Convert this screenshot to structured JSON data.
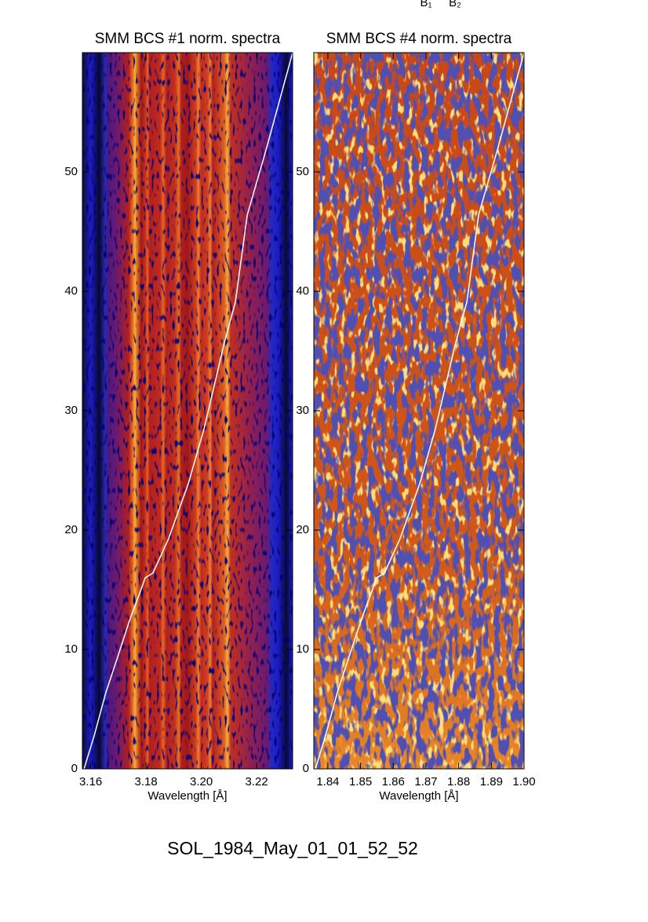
{
  "annotations": [
    "B₁",
    "B₂"
  ],
  "chart_data": [
    {
      "type": "line",
      "title": "SMM BCS #1 norm. spectra",
      "xlabel": "Wavelength [Å]",
      "xlim": [
        3.157,
        3.233
      ],
      "xticks": [
        3.16,
        3.18,
        {
          "value": 3.2,
          "label": "3.20"
        },
        3.22
      ],
      "ylim": [
        0,
        60
      ],
      "yticks": [
        0,
        10,
        20,
        30,
        40,
        50
      ],
      "series": [
        {
          "color": "#ffffff",
          "x": [
            3.1576,
            3.1613,
            3.1655,
            3.1698,
            3.174,
            3.1777,
            3.1797,
            3.1825,
            3.1882,
            3.1953,
            3.201,
            3.2081,
            3.2123,
            3.2166,
            3.2237,
            3.233
          ],
          "values": [
            0,
            2.8,
            6.4,
            9.4,
            12.4,
            14.7,
            16.0,
            16.4,
            19.3,
            23.9,
            28.5,
            35.5,
            39.1,
            46.4,
            52.1,
            60
          ]
        }
      ]
    },
    {
      "type": "line",
      "title": "SMM BCS #4 norm. spectra",
      "xlabel": "Wavelength [Å]",
      "xlim": [
        1.8357,
        1.9
      ],
      "xticks": [
        1.84,
        1.85,
        1.86,
        1.87,
        1.88,
        1.89,
        {
          "value": 1.9,
          "label": "1.90"
        }
      ],
      "ylim": [
        0,
        60
      ],
      "yticks": [
        0,
        10,
        20,
        30,
        40,
        50
      ],
      "series": [
        {
          "color": "#ffffff",
          "x": [
            1.8362,
            1.8393,
            1.8429,
            1.8465,
            1.8501,
            1.8532,
            1.8549,
            1.8573,
            1.8621,
            1.8681,
            1.8729,
            1.8789,
            1.8825,
            1.8861,
            1.8921,
            1.9
          ],
          "values": [
            0,
            2.8,
            6.4,
            9.4,
            12.4,
            14.7,
            16.0,
            16.4,
            19.3,
            23.9,
            28.5,
            35.5,
            39.1,
            46.4,
            52.1,
            60
          ]
        }
      ]
    }
  ],
  "footer": "SOL_1984_May_01_01_52_52"
}
